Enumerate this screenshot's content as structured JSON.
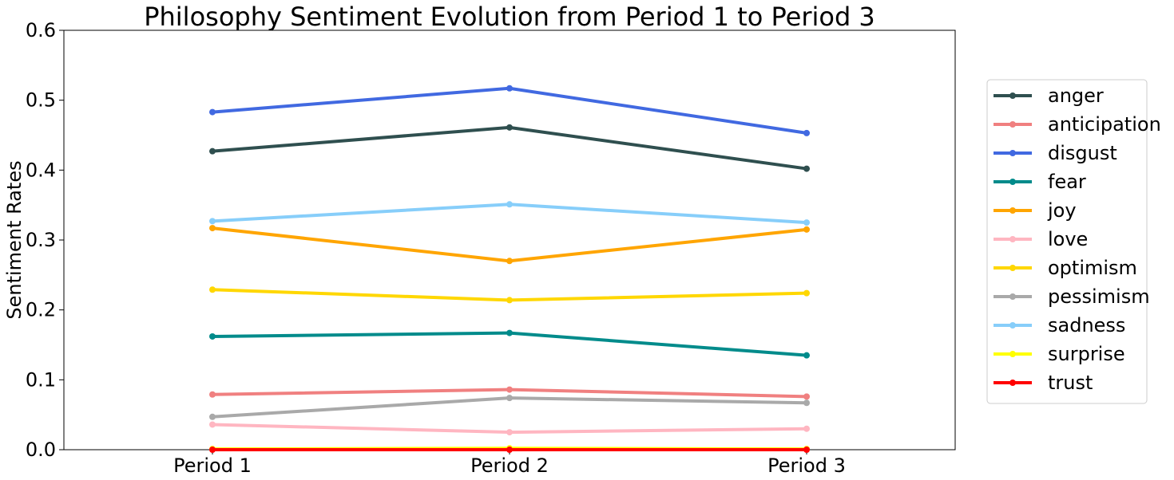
{
  "chart_data": {
    "type": "line",
    "title": "Philosophy Sentiment Evolution from Period 1 to Period 3",
    "xlabel": "",
    "ylabel": "Sentiment Rates",
    "categories": [
      "Period 1",
      "Period 2",
      "Period 3"
    ],
    "ylim": [
      0,
      0.6
    ],
    "yticks": [
      "0.0",
      "0.1",
      "0.2",
      "0.3",
      "0.4",
      "0.5",
      "0.6"
    ],
    "grid": false,
    "legend_position": "right",
    "series": [
      {
        "name": "anger",
        "color": "#2f4f4f",
        "values": [
          0.427,
          0.461,
          0.402
        ]
      },
      {
        "name": "anticipation",
        "color": "#f08080",
        "values": [
          0.079,
          0.086,
          0.076
        ]
      },
      {
        "name": "disgust",
        "color": "#4169e1",
        "values": [
          0.483,
          0.517,
          0.453
        ]
      },
      {
        "name": "fear",
        "color": "#008b8b",
        "values": [
          0.162,
          0.167,
          0.135
        ]
      },
      {
        "name": "joy",
        "color": "#ffa500",
        "values": [
          0.317,
          0.27,
          0.315
        ]
      },
      {
        "name": "love",
        "color": "#ffb6c1",
        "values": [
          0.036,
          0.025,
          0.03
        ]
      },
      {
        "name": "optimism",
        "color": "#ffd700",
        "values": [
          0.229,
          0.214,
          0.224
        ]
      },
      {
        "name": "pessimism",
        "color": "#a9a9a9",
        "values": [
          0.047,
          0.074,
          0.067
        ]
      },
      {
        "name": "sadness",
        "color": "#87cefa",
        "values": [
          0.327,
          0.351,
          0.325
        ]
      },
      {
        "name": "surprise",
        "color": "#ffff00",
        "values": [
          0.001,
          0.002,
          0.001
        ]
      },
      {
        "name": "trust",
        "color": "#ff0000",
        "values": [
          0.0,
          0.0,
          0.0
        ]
      }
    ]
  }
}
